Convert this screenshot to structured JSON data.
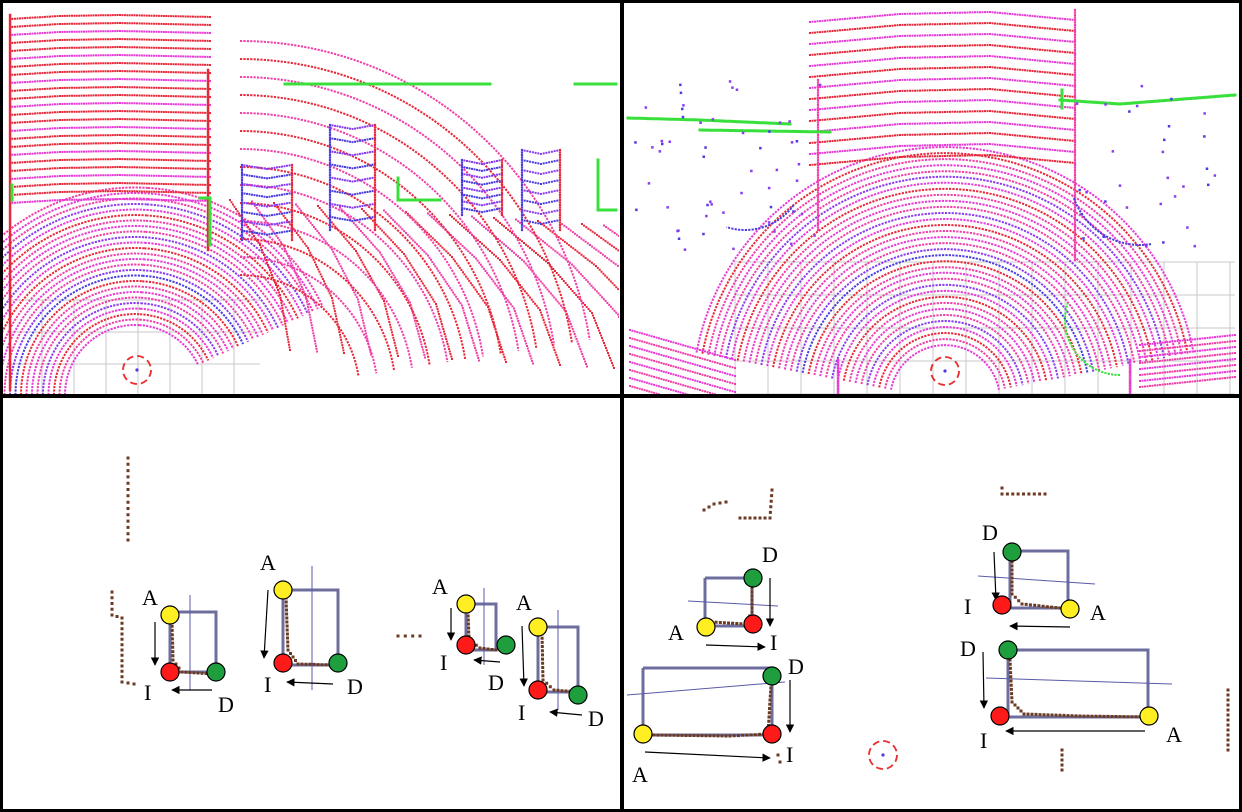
{
  "colors": {
    "scan_red": "#e8283a",
    "scan_magenta": "#e83bd6",
    "scan_pink": "#f040a8",
    "scan_blue": "#4a3ce0",
    "scan_purple": "#8a3cf0",
    "scan_green": "#39e03c",
    "scan_yellow": "#e8d83a",
    "points_brown": "#6b3a22",
    "box_outline": "#6e6e9e",
    "axis_line": "#5a5aa8",
    "grid": "#c8c8c8",
    "point_A": "#ffee22",
    "point_I": "#ff1a1a",
    "point_D": "#1e9e3c",
    "sensor_marker": "#e83030",
    "divider": "#000000"
  },
  "icons": {
    "sensor": "dashed-circle-sensor-icon",
    "corner_marker": "filled-circle-marker-icon",
    "arrow": "arrow-icon"
  },
  "panels": [
    {
      "name": "top-left",
      "kind": "lidar-scan"
    },
    {
      "name": "top-right",
      "kind": "lidar-scan"
    },
    {
      "name": "bottom-left",
      "kind": "detections",
      "boxes": [
        {
          "labels": {
            "A": "A",
            "I": "I",
            "D": "D"
          }
        },
        {
          "labels": {
            "A": "A",
            "I": "I",
            "D": "D"
          }
        },
        {
          "labels": {
            "A": "A",
            "I": "I",
            "D": "D"
          }
        },
        {
          "labels": {
            "A": "A",
            "I": "I",
            "D": "D"
          }
        }
      ]
    },
    {
      "name": "bottom-right",
      "kind": "detections",
      "boxes": [
        {
          "labels": {
            "A": "A",
            "I": "I",
            "D": "D"
          }
        },
        {
          "labels": {
            "A": "A",
            "I": "I",
            "D": "D"
          }
        },
        {
          "labels": {
            "A": "A",
            "I": "I",
            "D": "D"
          }
        },
        {
          "labels": {
            "A": "A",
            "I": "I",
            "D": "D"
          }
        }
      ]
    }
  ]
}
